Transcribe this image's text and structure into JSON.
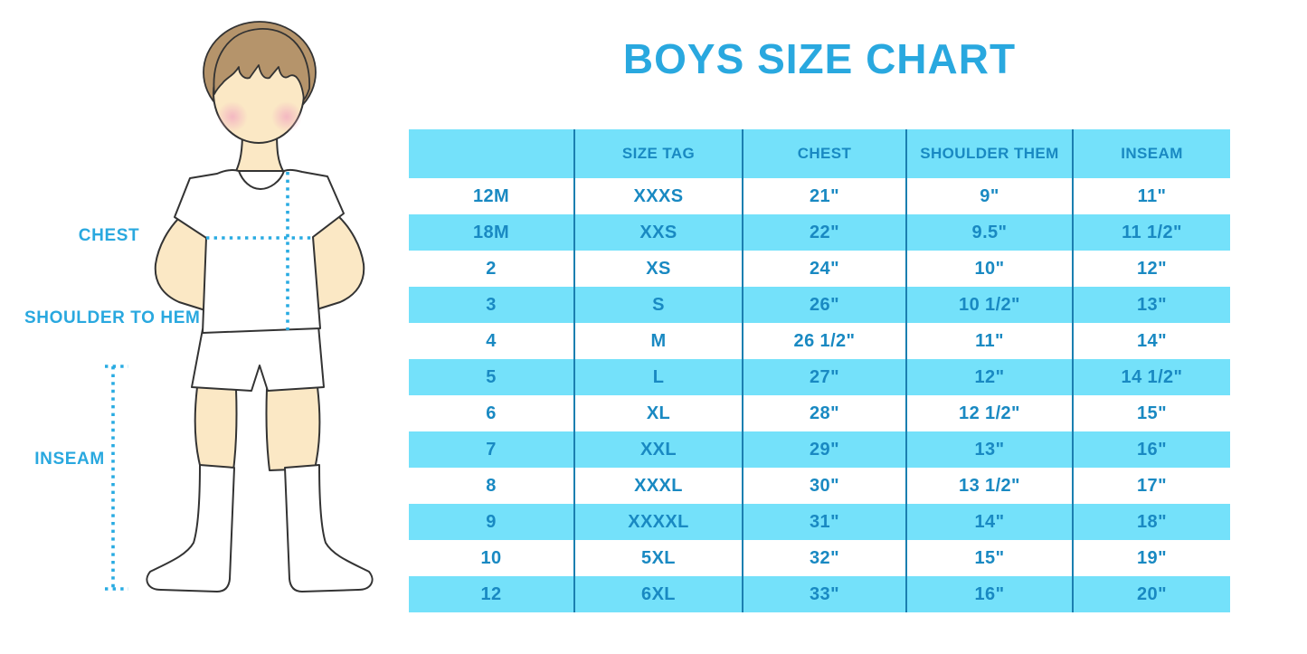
{
  "title": "BOYS SIZE CHART",
  "figure": {
    "description": "boy-measurement-illustration",
    "labels": {
      "chest": "CHEST",
      "shoulder_to_hem": "SHOULDER TO HEM",
      "inseam": "INSEAM"
    }
  },
  "chart_data": {
    "type": "table",
    "title": "BOYS SIZE CHART",
    "columns": [
      "",
      "SIZE TAG",
      "CHEST",
      "SHOULDER THEM",
      "INSEAM"
    ],
    "rows": [
      [
        "12M",
        "XXXS",
        "21\"",
        "9\"",
        "11\""
      ],
      [
        "18M",
        "XXS",
        "22\"",
        "9.5\"",
        "11 1/2\""
      ],
      [
        "2",
        "XS",
        "24\"",
        "10\"",
        "12\""
      ],
      [
        "3",
        "S",
        "26\"",
        "10 1/2\"",
        "13\""
      ],
      [
        "4",
        "M",
        "26 1/2\"",
        "11\"",
        "14\""
      ],
      [
        "5",
        "L",
        "27\"",
        "12\"",
        "14 1/2\""
      ],
      [
        "6",
        "XL",
        "28\"",
        "12 1/2\"",
        "15\""
      ],
      [
        "7",
        "XXL",
        "29\"",
        "13\"",
        "16\""
      ],
      [
        "8",
        "XXXL",
        "30\"",
        "13 1/2\"",
        "17\""
      ],
      [
        "9",
        "XXXXL",
        "31\"",
        "14\"",
        "18\""
      ],
      [
        "10",
        "5XL",
        "32\"",
        "15\"",
        "19\""
      ],
      [
        "12",
        "6XL",
        "33\"",
        "16\"",
        "20\""
      ]
    ],
    "layout_hints": {
      "row_striping": "white/cyan alternating, header cyan",
      "grid": "vertical column dividers only, no outer border"
    }
  },
  "theme": {
    "title_blue": "#29A8DF",
    "table_text_blue": "#1989C2",
    "band_cyan": "#74E1FA",
    "divider_blue": "#1B7FB0",
    "dotted_line_blue": "#29ABE2",
    "skin": "#FBE8C5",
    "hair_brown": "#B5946B",
    "cheek_pink": "#F2AFC1",
    "outline": "#333333"
  }
}
